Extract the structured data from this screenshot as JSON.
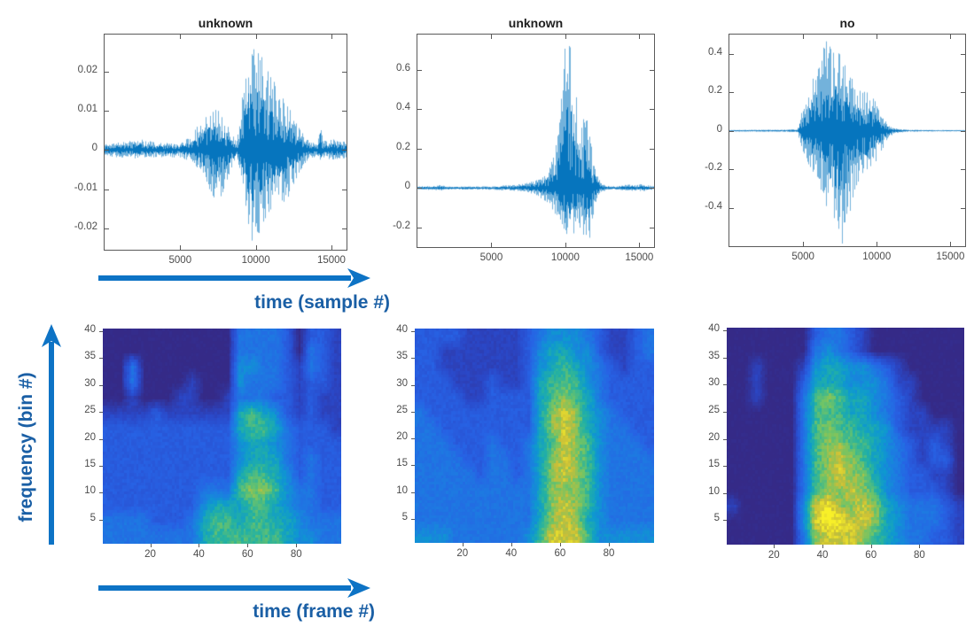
{
  "figure": {
    "background": "#ffffff",
    "annotations": {
      "time_sample_label": "time (sample #)",
      "frequency_label": "frequency (bin #)",
      "time_frame_label": "time (frame #)"
    },
    "colors": {
      "waveform_line": "#0072BD",
      "axis": "#5a5a5a",
      "tick_label": "#4b4b4b",
      "title": "#1f1f1f",
      "arrow": "#0d73c5",
      "annotation_text": "#1a5fa5"
    }
  },
  "chart_data": [
    {
      "type": "line",
      "subtype": "audio-waveform",
      "title": "unknown",
      "x_ticks": [
        5000,
        10000,
        15000
      ],
      "y_ticks": [
        0.02,
        0.01,
        0,
        -0.01,
        -0.02
      ],
      "xlim": [
        0,
        16000
      ],
      "ylim": [
        -0.0255,
        0.0295
      ],
      "envelope_format": "[sample, +amplitude, -amplitude]",
      "envelope": [
        [
          0,
          0.0016,
          0.0016
        ],
        [
          1200,
          0.002,
          0.002
        ],
        [
          2300,
          0.0028,
          0.0022
        ],
        [
          3500,
          0.0018,
          0.0018
        ],
        [
          5000,
          0.002,
          0.002
        ],
        [
          5800,
          0.0035,
          0.003
        ],
        [
          6300,
          0.0085,
          0.006
        ],
        [
          6800,
          0.0105,
          0.009
        ],
        [
          7200,
          0.011,
          0.0125
        ],
        [
          7600,
          0.0105,
          0.0125
        ],
        [
          8000,
          0.007,
          0.009
        ],
        [
          8400,
          0.004,
          0.005
        ],
        [
          8700,
          0.0022,
          0.0022
        ],
        [
          8950,
          0.009,
          0.006
        ],
        [
          9200,
          0.02,
          0.013
        ],
        [
          9500,
          0.027,
          0.02
        ],
        [
          9800,
          0.0285,
          0.0245
        ],
        [
          10100,
          0.026,
          0.0235
        ],
        [
          10400,
          0.0235,
          0.019
        ],
        [
          10800,
          0.02,
          0.016
        ],
        [
          11200,
          0.0175,
          0.0145
        ],
        [
          11600,
          0.016,
          0.0125
        ],
        [
          12000,
          0.0125,
          0.014
        ],
        [
          12400,
          0.009,
          0.0095
        ],
        [
          12800,
          0.006,
          0.006
        ],
        [
          13200,
          0.0035,
          0.0035
        ],
        [
          13600,
          0.002,
          0.002
        ],
        [
          14100,
          0.0022,
          0.002
        ],
        [
          14250,
          0.0085,
          0.0035
        ],
        [
          14400,
          0.0022,
          0.002
        ],
        [
          15000,
          0.0028,
          0.0025
        ],
        [
          15600,
          0.0022,
          0.0022
        ],
        [
          16000,
          0.002,
          0.002
        ]
      ]
    },
    {
      "type": "line",
      "subtype": "audio-waveform",
      "title": "unknown",
      "x_ticks": [
        5000,
        10000,
        15000
      ],
      "y_ticks": [
        0.6,
        0.4,
        0.2,
        0,
        -0.2
      ],
      "xlim": [
        0,
        16000
      ],
      "ylim": [
        -0.3,
        0.78
      ],
      "envelope_format": "[sample, +amplitude, -amplitude]",
      "envelope": [
        [
          0,
          0.008,
          0.008
        ],
        [
          600,
          0.014,
          0.012
        ],
        [
          900,
          0.008,
          0.008
        ],
        [
          1600,
          0.016,
          0.013
        ],
        [
          1900,
          0.008,
          0.008
        ],
        [
          3500,
          0.008,
          0.008
        ],
        [
          5200,
          0.009,
          0.009
        ],
        [
          6600,
          0.018,
          0.015
        ],
        [
          7200,
          0.022,
          0.018
        ],
        [
          7800,
          0.035,
          0.03
        ],
        [
          8300,
          0.055,
          0.05
        ],
        [
          8800,
          0.09,
          0.08
        ],
        [
          9200,
          0.16,
          0.12
        ],
        [
          9500,
          0.32,
          0.16
        ],
        [
          9750,
          0.55,
          0.2
        ],
        [
          10000,
          0.75,
          0.27
        ],
        [
          10150,
          0.77,
          0.29
        ],
        [
          10350,
          0.7,
          0.27
        ],
        [
          10600,
          0.52,
          0.22
        ],
        [
          10900,
          0.38,
          0.2
        ],
        [
          11100,
          0.33,
          0.22
        ],
        [
          11350,
          0.42,
          0.26
        ],
        [
          11600,
          0.28,
          0.27
        ],
        [
          11850,
          0.16,
          0.14
        ],
        [
          12100,
          0.07,
          0.06
        ],
        [
          12400,
          0.025,
          0.02
        ],
        [
          12800,
          0.012,
          0.01
        ],
        [
          13500,
          0.009,
          0.008
        ],
        [
          14300,
          0.02,
          0.015
        ],
        [
          14700,
          0.016,
          0.013
        ],
        [
          15200,
          0.02,
          0.016
        ],
        [
          15700,
          0.012,
          0.01
        ],
        [
          16000,
          0.008,
          0.008
        ]
      ]
    },
    {
      "type": "line",
      "subtype": "audio-waveform",
      "title": "no",
      "x_ticks": [
        5000,
        10000,
        15000
      ],
      "y_ticks": [
        0.4,
        0.2,
        0,
        -0.2,
        -0.4
      ],
      "xlim": [
        0,
        16000
      ],
      "ylim": [
        -0.6,
        0.5
      ],
      "envelope_format": "[sample, +amplitude, -amplitude]",
      "envelope": [
        [
          0,
          0.004,
          0.004
        ],
        [
          2000,
          0.005,
          0.005
        ],
        [
          3800,
          0.006,
          0.006
        ],
        [
          4600,
          0.008,
          0.008
        ],
        [
          4800,
          0.09,
          0.07
        ],
        [
          5100,
          0.16,
          0.13
        ],
        [
          5500,
          0.24,
          0.2
        ],
        [
          5900,
          0.32,
          0.27
        ],
        [
          6300,
          0.43,
          0.34
        ],
        [
          6600,
          0.49,
          0.4
        ],
        [
          6900,
          0.46,
          0.46
        ],
        [
          7200,
          0.44,
          0.52
        ],
        [
          7500,
          0.4,
          0.57
        ],
        [
          7700,
          0.36,
          0.6
        ],
        [
          8000,
          0.31,
          0.47
        ],
        [
          8300,
          0.27,
          0.39
        ],
        [
          8700,
          0.23,
          0.31
        ],
        [
          9100,
          0.21,
          0.26
        ],
        [
          9500,
          0.19,
          0.22
        ],
        [
          9800,
          0.165,
          0.19
        ],
        [
          10100,
          0.12,
          0.14
        ],
        [
          10400,
          0.07,
          0.09
        ],
        [
          10700,
          0.04,
          0.05
        ],
        [
          11000,
          0.02,
          0.025
        ],
        [
          11400,
          0.01,
          0.012
        ],
        [
          12000,
          0.006,
          0.006
        ],
        [
          13000,
          0.004,
          0.004
        ],
        [
          16000,
          0.0035,
          0.0035
        ]
      ]
    },
    {
      "type": "heatmap",
      "subtype": "mel-spectrogram",
      "title": "",
      "x_ticks": [
        20,
        40,
        60,
        80
      ],
      "y_ticks": [
        5,
        10,
        15,
        20,
        25,
        30,
        35,
        40
      ],
      "xlim": [
        0.5,
        98.5
      ],
      "ylim": [
        0.5,
        40.5
      ],
      "colormap": "parula",
      "grid_encoding": "14 rows (top=bin 40 ... bottom=bin 1) x 20 cols (frames 1..98); digit 0-9 = relative log-mel energy",
      "grid": [
        "00000000000333320221",
        "00000000000333320321",
        "00300000000443321321",
        "00300001000433321221",
        "00100011001333221211",
        "11112111111565421211",
        "22222222222566532221",
        "22222222222455432222",
        "22222222222455532322",
        "22222222222566542322",
        "22222222333677643322",
        "22222222455566543322",
        "33332223566566554333",
        "33333333566666654433"
      ]
    },
    {
      "type": "heatmap",
      "subtype": "mel-spectrogram",
      "title": "",
      "x_ticks": [
        20,
        40,
        60,
        80
      ],
      "y_ticks": [
        5,
        10,
        15,
        20,
        25,
        30,
        35,
        40
      ],
      "xlim": [
        0.5,
        98.5
      ],
      "ylim": [
        0.5,
        40.5
      ],
      "colormap": "parula",
      "grid_encoding": "14 rows (top=bin 40 ... bottom=bin 1) x 20 cols (frames 1..98); digit 0-9 = relative log-mel energy",
      "grid": [
        "22221111123444321123",
        "22111111124554421123",
        "22111111124565432122",
        "22211121125666432222",
        "22221122225676532222",
        "32222222225787543222",
        "33222222225787543322",
        "33322232235687643332",
        "33332233235787643333",
        "33333233235787643333",
        "33333333335777643333",
        "33333333335787643333",
        "33333333335787543333",
        "44433333346888644444"
      ]
    },
    {
      "type": "heatmap",
      "subtype": "mel-spectrogram",
      "title": "",
      "x_ticks": [
        20,
        40,
        60,
        80
      ],
      "y_ticks": [
        5,
        10,
        15,
        20,
        25,
        30,
        35,
        40
      ],
      "xlim": [
        0.5,
        98.5
      ],
      "ylim": [
        0.5,
        40.5
      ],
      "colormap": "parula",
      "grid_encoding": "14 rows (top=bin 40 ... bottom=bin 1) x 20 cols (frames 1..98); digit 0-9 = relative log-mel energy",
      "grid": [
        "00000002332100000000",
        "00000003432100000000",
        "00100014554432100000",
        "00100025554443110000",
        "00100036765543210000",
        "00000036665543211000",
        "00000036766554211110",
        "00000036776654321210",
        "00000036787654321220",
        "00000036787754322110",
        "00000036778764322210",
        "10000048977875433321",
        "00000048998875433321",
        "00000037888765433221"
      ]
    }
  ]
}
